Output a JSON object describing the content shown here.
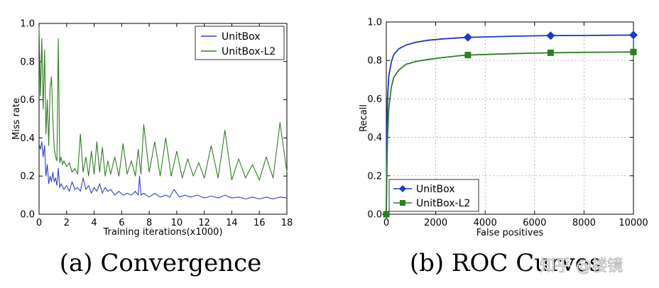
{
  "figure": {
    "watermark": "知乎 @楼镜",
    "colors": {
      "unitbox": "#3240c9",
      "unitbox_l2": "#2f7d1f",
      "roc_unitbox": "#1a39c8",
      "roc_unitbox_l2": "#2e7d24"
    }
  },
  "chart_data": [
    {
      "type": "line",
      "caption": "(a) Convergence",
      "xlabel": "Training iterations(x1000)",
      "ylabel": "Miss rate",
      "xlim": [
        0,
        18
      ],
      "ylim": [
        0,
        1.0
      ],
      "xticks": [
        "0",
        "2",
        "4",
        "6",
        "8",
        "10",
        "12",
        "14",
        "16",
        "18"
      ],
      "yticks": [
        "0.0",
        "0.2",
        "0.4",
        "0.6",
        "0.8",
        "1.0"
      ],
      "grid": false,
      "legend_position": "top-right",
      "series": [
        {
          "name": "UnitBox",
          "x": [
            0,
            0.1,
            0.2,
            0.3,
            0.4,
            0.5,
            0.6,
            0.7,
            0.8,
            0.9,
            1.0,
            1.1,
            1.2,
            1.3,
            1.4,
            1.5,
            1.6,
            1.8,
            2.0,
            2.2,
            2.4,
            2.6,
            2.8,
            3.0,
            3.2,
            3.4,
            3.6,
            3.8,
            4.0,
            4.2,
            4.4,
            4.6,
            4.8,
            5.0,
            5.2,
            5.5,
            5.8,
            6.1,
            6.4,
            6.7,
            7.0,
            7.2,
            7.3,
            7.4,
            7.6,
            8.0,
            8.4,
            8.8,
            9.2,
            9.5,
            9.8,
            10.2,
            10.6,
            11.0,
            11.5,
            12.0,
            12.5,
            13.0,
            13.5,
            14.0,
            14.5,
            15.0,
            15.5,
            16.0,
            16.5,
            17.0,
            17.5,
            18.0
          ],
          "y": [
            0.37,
            0.34,
            0.38,
            0.3,
            0.36,
            0.2,
            0.26,
            0.16,
            0.2,
            0.17,
            0.22,
            0.17,
            0.19,
            0.15,
            0.24,
            0.14,
            0.16,
            0.13,
            0.15,
            0.12,
            0.17,
            0.13,
            0.14,
            0.12,
            0.19,
            0.13,
            0.15,
            0.11,
            0.14,
            0.12,
            0.16,
            0.11,
            0.14,
            0.12,
            0.13,
            0.1,
            0.12,
            0.1,
            0.11,
            0.1,
            0.12,
            0.1,
            0.2,
            0.1,
            0.11,
            0.09,
            0.11,
            0.09,
            0.1,
            0.09,
            0.13,
            0.09,
            0.1,
            0.09,
            0.1,
            0.085,
            0.095,
            0.085,
            0.1,
            0.085,
            0.09,
            0.08,
            0.09,
            0.08,
            0.09,
            0.08,
            0.09,
            0.085
          ]
        },
        {
          "name": "UnitBox-L2",
          "x": [
            0,
            0.1,
            0.2,
            0.3,
            0.4,
            0.5,
            0.6,
            0.7,
            0.8,
            0.9,
            1.0,
            1.1,
            1.2,
            1.3,
            1.4,
            1.5,
            1.6,
            1.7,
            1.8,
            2.0,
            2.2,
            2.4,
            2.6,
            2.8,
            3.0,
            3.2,
            3.4,
            3.6,
            3.8,
            4.0,
            4.2,
            4.4,
            4.6,
            4.8,
            5.0,
            5.2,
            5.5,
            5.8,
            6.1,
            6.4,
            6.7,
            7.0,
            7.2,
            7.4,
            7.6,
            8.0,
            8.4,
            8.8,
            9.2,
            9.6,
            10.0,
            10.4,
            10.8,
            11.2,
            11.6,
            12.0,
            12.5,
            13.0,
            13.5,
            14.0,
            14.5,
            15.0,
            15.5,
            16.0,
            16.5,
            17.0,
            17.5,
            18.0
          ],
          "y": [
            0.98,
            0.62,
            0.92,
            0.55,
            0.86,
            0.42,
            0.6,
            0.36,
            0.66,
            0.72,
            0.5,
            0.35,
            0.3,
            0.28,
            0.92,
            0.27,
            0.3,
            0.26,
            0.28,
            0.25,
            0.27,
            0.22,
            0.24,
            0.21,
            0.42,
            0.22,
            0.3,
            0.2,
            0.33,
            0.21,
            0.38,
            0.22,
            0.35,
            0.2,
            0.28,
            0.21,
            0.3,
            0.2,
            0.37,
            0.21,
            0.28,
            0.2,
            0.34,
            0.21,
            0.47,
            0.22,
            0.38,
            0.2,
            0.4,
            0.2,
            0.33,
            0.19,
            0.29,
            0.2,
            0.27,
            0.19,
            0.36,
            0.19,
            0.44,
            0.18,
            0.29,
            0.19,
            0.26,
            0.18,
            0.3,
            0.19,
            0.48,
            0.22
          ]
        }
      ]
    },
    {
      "type": "line",
      "caption": "(b) ROC Curves",
      "xlabel": "False positives",
      "ylabel": "Recall",
      "xlim": [
        0,
        10000
      ],
      "ylim": [
        0,
        1.0
      ],
      "xticks": [
        "0",
        "2000",
        "4000",
        "6000",
        "8000",
        "10000"
      ],
      "yticks": [
        "0.0",
        "0.2",
        "0.4",
        "0.6",
        "0.8",
        "1.0"
      ],
      "grid": true,
      "legend_position": "bottom-left",
      "series": [
        {
          "name": "UnitBox",
          "marker": "diamond",
          "x": [
            0,
            25,
            50,
            100,
            200,
            300,
            500,
            800,
            1200,
            1700,
            2300,
            3000,
            3300,
            4000,
            5000,
            6000,
            6650,
            8000,
            9000,
            10000
          ],
          "y": [
            0.0,
            0.45,
            0.6,
            0.72,
            0.79,
            0.83,
            0.86,
            0.88,
            0.895,
            0.905,
            0.912,
            0.918,
            0.92,
            0.922,
            0.926,
            0.928,
            0.929,
            0.93,
            0.931,
            0.932
          ],
          "markers_at_x": [
            0,
            3300,
            6650,
            10000
          ]
        },
        {
          "name": "UnitBox-L2",
          "marker": "square",
          "x": [
            0,
            25,
            50,
            100,
            200,
            300,
            500,
            800,
            1200,
            1700,
            2300,
            3000,
            3300,
            4000,
            5000,
            6000,
            6650,
            8000,
            9000,
            10000
          ],
          "y": [
            0.0,
            0.25,
            0.4,
            0.55,
            0.66,
            0.71,
            0.75,
            0.78,
            0.795,
            0.805,
            0.815,
            0.825,
            0.828,
            0.831,
            0.835,
            0.838,
            0.84,
            0.842,
            0.843,
            0.844
          ],
          "markers_at_x": [
            0,
            3300,
            6650,
            10000
          ]
        }
      ]
    }
  ]
}
